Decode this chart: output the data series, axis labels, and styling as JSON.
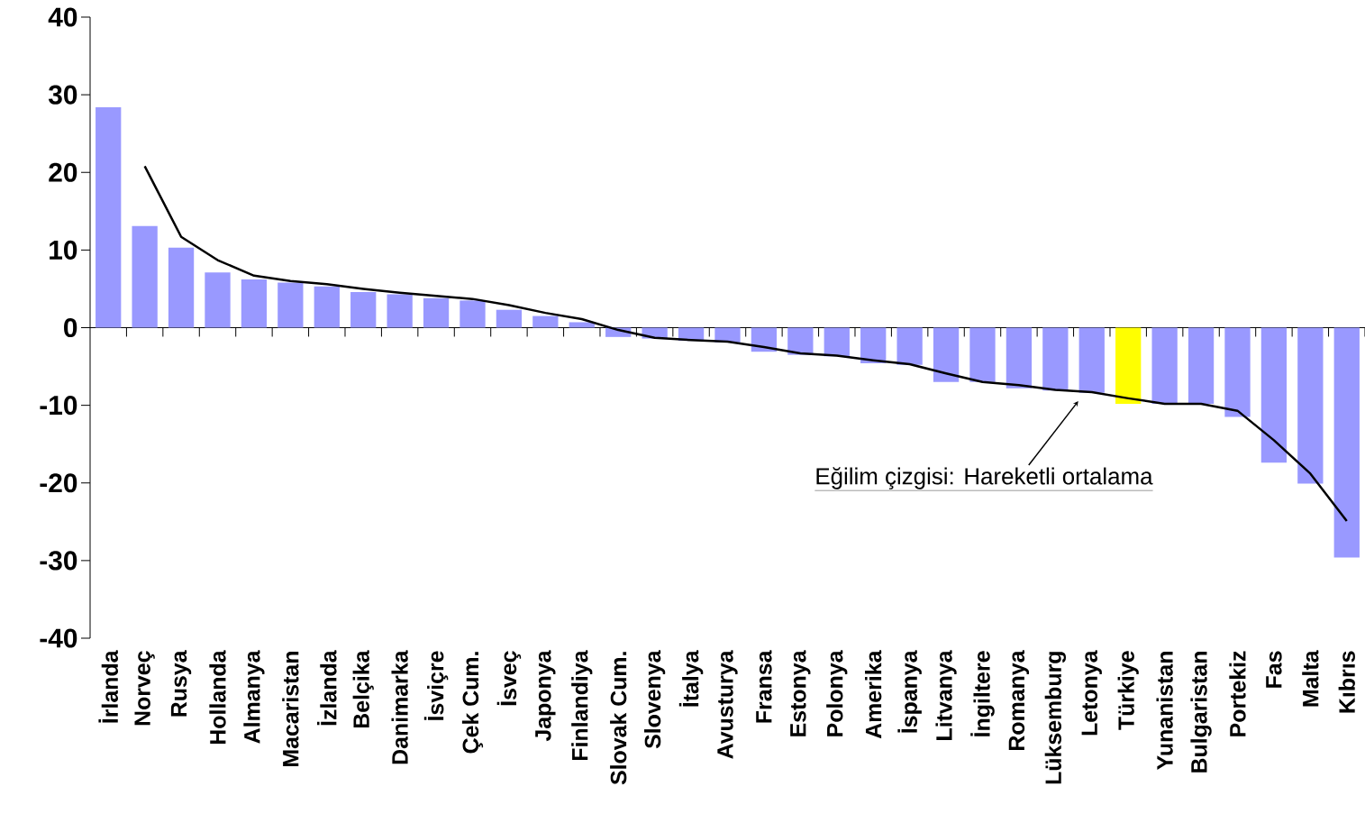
{
  "chart_data": {
    "type": "bar",
    "categories": [
      "İrlanda",
      "Norveç",
      "Rusya",
      "Hollanda",
      "Almanya",
      "Macaristan",
      "İzlanda",
      "Belçika",
      "Danimarka",
      "İsviçre",
      "Çek Cum.",
      "İsveç",
      "Japonya",
      "Finlandiya",
      "Slovak Cum.",
      "Slovenya",
      "İtalya",
      "Avusturya",
      "Fransa",
      "Estonya",
      "Polonya",
      "Amerika",
      "İspanya",
      "Litvanya",
      "İngiltere",
      "Romanya",
      "Lüksemburg",
      "Letonya",
      "Türkiye",
      "Yunanistan",
      "Bulgaristan",
      "Portekiz",
      "Fas",
      "Malta",
      "Kıbrıs"
    ],
    "series": [
      {
        "type": "bar",
        "values": [
          28.4,
          13.1,
          10.3,
          7.1,
          6.2,
          5.8,
          5.3,
          4.6,
          4.3,
          3.8,
          3.5,
          2.3,
          1.5,
          0.7,
          -1.2,
          -1.4,
          -1.7,
          -1.9,
          -3.1,
          -3.5,
          -3.7,
          -4.6,
          -4.8,
          -7.0,
          -7.0,
          -7.8,
          -8.1,
          -8.4,
          -9.8,
          -9.8,
          -9.8,
          -11.5,
          -17.4,
          -20.1,
          -29.6
        ],
        "colors": [
          "#9999ff",
          "#9999ff",
          "#9999ff",
          "#9999ff",
          "#9999ff",
          "#9999ff",
          "#9999ff",
          "#9999ff",
          "#9999ff",
          "#9999ff",
          "#9999ff",
          "#9999ff",
          "#9999ff",
          "#9999ff",
          "#9999ff",
          "#9999ff",
          "#9999ff",
          "#9999ff",
          "#9999ff",
          "#9999ff",
          "#9999ff",
          "#9999ff",
          "#9999ff",
          "#9999ff",
          "#9999ff",
          "#9999ff",
          "#9999ff",
          "#9999ff",
          "#ffff00",
          "#9999ff",
          "#9999ff",
          "#9999ff",
          "#9999ff",
          "#9999ff",
          "#9999ff"
        ]
      },
      {
        "type": "line",
        "color": "#000000",
        "values": [
          null,
          20.8,
          11.7,
          8.7,
          6.7,
          6.0,
          5.6,
          5.0,
          4.5,
          4.1,
          3.7,
          2.9,
          1.9,
          1.1,
          -0.3,
          -1.3,
          -1.6,
          -1.8,
          -2.5,
          -3.3,
          -3.6,
          -4.2,
          -4.7,
          -5.9,
          -7.0,
          -7.4,
          -8.0,
          -8.3,
          -9.1,
          -9.8,
          -9.8,
          -10.7,
          -14.5,
          -18.8,
          -24.9
        ]
      }
    ],
    "ylim": [
      -40,
      40
    ],
    "yticks": [
      -40,
      -30,
      -20,
      -10,
      0,
      10,
      20,
      30,
      40
    ],
    "annotations": [
      {
        "text": "Eğilim çizgisi: Hareketli ortalama",
        "x": "Letonya",
        "y": -9
      }
    ]
  }
}
